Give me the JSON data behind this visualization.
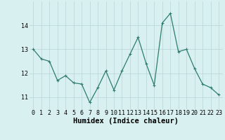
{
  "x": [
    0,
    1,
    2,
    3,
    4,
    5,
    6,
    7,
    8,
    9,
    10,
    11,
    12,
    13,
    14,
    15,
    16,
    17,
    18,
    19,
    20,
    21,
    22,
    23
  ],
  "y": [
    13.0,
    12.6,
    12.5,
    11.7,
    11.9,
    11.6,
    11.55,
    10.78,
    11.4,
    12.1,
    11.3,
    12.1,
    12.8,
    13.5,
    12.4,
    11.5,
    14.1,
    14.5,
    12.9,
    13.0,
    12.2,
    11.55,
    11.4,
    11.1
  ],
  "xlabel": "Humidex (Indice chaleur)",
  "xlim": [
    -0.5,
    23.5
  ],
  "ylim": [
    10.5,
    15.0
  ],
  "yticks": [
    11,
    12,
    13,
    14
  ],
  "line_color": "#2e7d6e",
  "marker_color": "#2e7d6e",
  "bg_color": "#d8f0f0",
  "grid_color": "#b8d4d4",
  "tick_label_fontsize": 6.0,
  "xlabel_fontsize": 7.5
}
